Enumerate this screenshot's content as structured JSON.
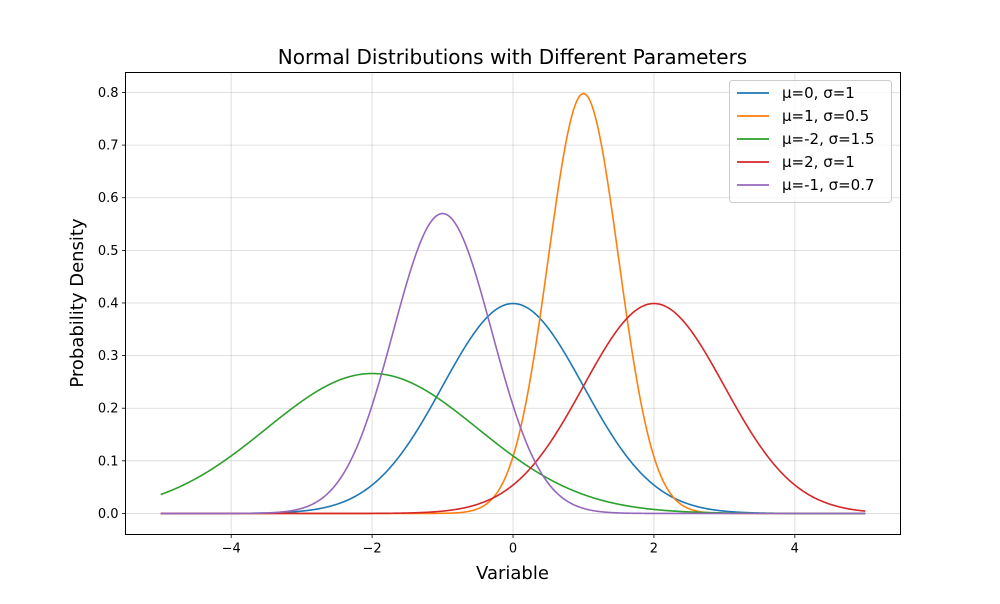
{
  "chart_data": {
    "type": "line",
    "title": "Normal Distributions with Different Parameters",
    "xlabel": "Variable",
    "ylabel": "Probability Density",
    "xlim": [
      -5.5,
      5.5
    ],
    "ylim": [
      -0.04,
      0.838
    ],
    "x_range": [
      -5,
      5
    ],
    "xticks": [
      -4,
      -2,
      0,
      2,
      4
    ],
    "xtick_labels": [
      "−4",
      "−2",
      "0",
      "2",
      "4"
    ],
    "yticks": [
      0.0,
      0.1,
      0.2,
      0.3,
      0.4,
      0.5,
      0.6,
      0.7,
      0.8
    ],
    "ytick_labels": [
      "0.0",
      "0.1",
      "0.2",
      "0.3",
      "0.4",
      "0.5",
      "0.6",
      "0.7",
      "0.8"
    ],
    "grid": true,
    "legend_position": "top-right",
    "series": [
      {
        "name": "μ=0, σ=1",
        "mu": 0,
        "sigma": 1,
        "color": "#1f77b4"
      },
      {
        "name": "μ=1, σ=0.5",
        "mu": 1,
        "sigma": 0.5,
        "color": "#ff7f0e"
      },
      {
        "name": "μ=-2, σ=1.5",
        "mu": -2,
        "sigma": 1.5,
        "color": "#2ca02c"
      },
      {
        "name": "μ=2, σ=1",
        "mu": 2,
        "sigma": 1,
        "color": "#d62728"
      },
      {
        "name": "μ=-1, σ=0.7",
        "mu": -1,
        "sigma": 0.7,
        "color": "#9467bd"
      }
    ]
  }
}
